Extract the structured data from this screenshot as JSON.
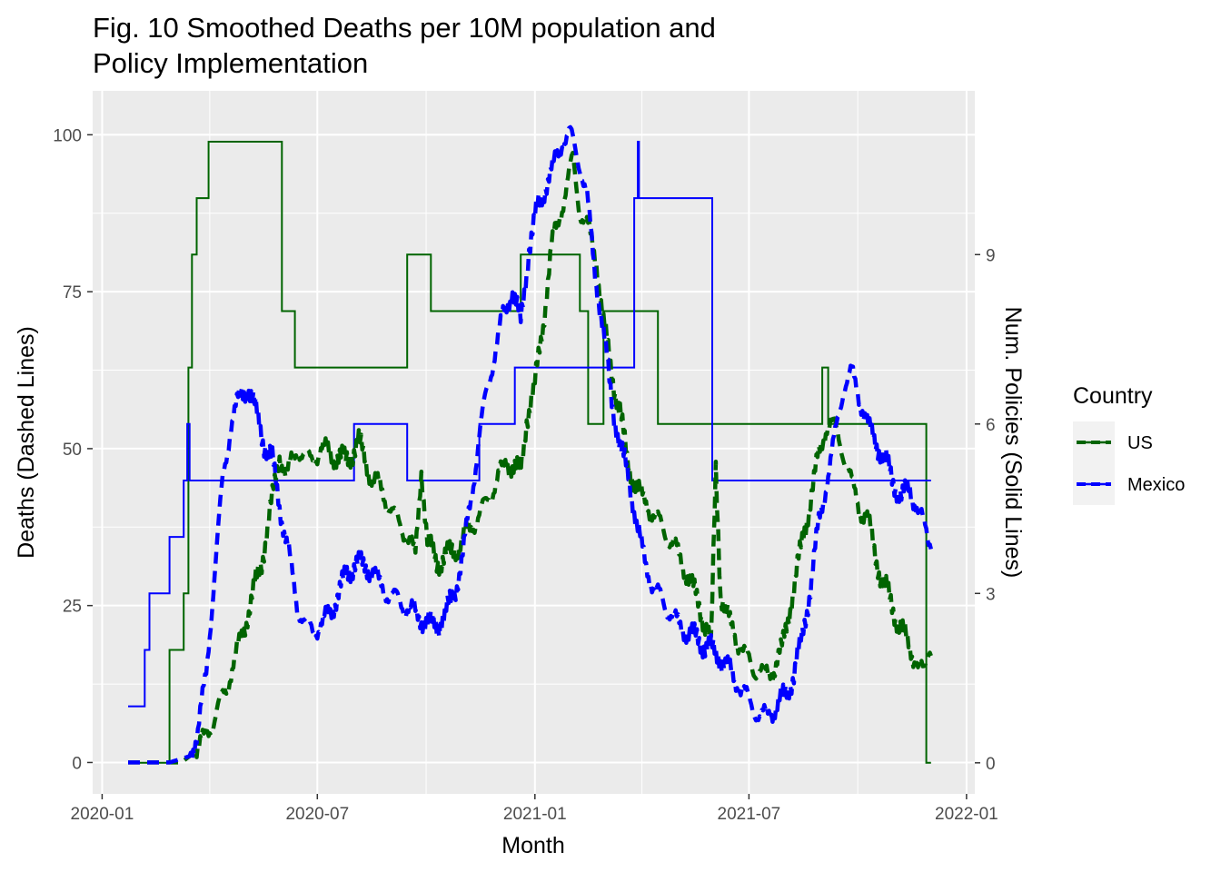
{
  "chart_data": {
    "type": "line",
    "title": [
      "Fig. 10 Smoothed Deaths per 10M population and",
      "Policy Implementation"
    ],
    "xlabel": "Month",
    "ylabel": "Deaths (Dashed Lines)",
    "y2label": "Num. Policies (Solid Lines)",
    "x_ticks": [
      "2020-01",
      "2020-07",
      "2021-01",
      "2021-07",
      "2022-01"
    ],
    "y_ticks": [
      "0",
      "25",
      "50",
      "75",
      "100"
    ],
    "y2_ticks": [
      "0",
      "3",
      "6",
      "9"
    ],
    "xlim": [
      "2019-12-24",
      "2022-01-08"
    ],
    "ylim": [
      -5,
      107
    ],
    "y2lim": [
      -0.55,
      11.9
    ],
    "grid": true,
    "legend": {
      "title": "Country",
      "position": "right",
      "entries": [
        {
          "label": "US",
          "color": "#006400"
        },
        {
          "label": "Mexico",
          "color": "#0000ff"
        }
      ]
    },
    "series": [
      {
        "name": "US",
        "color": "#006400",
        "deaths": [
          [
            "2020-01-23",
            0
          ],
          [
            "2020-02-20",
            0
          ],
          [
            "2020-03-08",
            0
          ],
          [
            "2020-03-15",
            1
          ],
          [
            "2020-03-25",
            3
          ],
          [
            "2020-04-05",
            7
          ],
          [
            "2020-04-15",
            12
          ],
          [
            "2020-04-25",
            18
          ],
          [
            "2020-05-05",
            25
          ],
          [
            "2020-05-15",
            32
          ],
          [
            "2020-05-22",
            40
          ],
          [
            "2020-05-27",
            45
          ],
          [
            "2020-05-30",
            49
          ],
          [
            "2020-06-05",
            46
          ],
          [
            "2020-06-15",
            50
          ],
          [
            "2020-06-25",
            48
          ],
          [
            "2020-07-05",
            50
          ],
          [
            "2020-07-15",
            49
          ],
          [
            "2020-07-25",
            48
          ],
          [
            "2020-08-05",
            51
          ],
          [
            "2020-08-15",
            46
          ],
          [
            "2020-08-25",
            43
          ],
          [
            "2020-09-05",
            39
          ],
          [
            "2020-09-15",
            36
          ],
          [
            "2020-09-22",
            33
          ],
          [
            "2020-09-27",
            47
          ],
          [
            "2020-10-02",
            35
          ],
          [
            "2020-10-10",
            32
          ],
          [
            "2020-10-20",
            33
          ],
          [
            "2020-10-30",
            35
          ],
          [
            "2020-11-10",
            38
          ],
          [
            "2020-11-20",
            41
          ],
          [
            "2020-11-30",
            45
          ],
          [
            "2020-12-08",
            48
          ],
          [
            "2020-12-15",
            47
          ],
          [
            "2020-12-20",
            46
          ],
          [
            "2020-12-25",
            55
          ],
          [
            "2021-01-01",
            60
          ],
          [
            "2021-01-08",
            70
          ],
          [
            "2021-01-15",
            82
          ],
          [
            "2021-01-22",
            87
          ],
          [
            "2021-01-28",
            92
          ],
          [
            "2021-02-02",
            96
          ],
          [
            "2021-02-08",
            88
          ],
          [
            "2021-02-15",
            85
          ],
          [
            "2021-02-22",
            80
          ],
          [
            "2021-02-28",
            70
          ],
          [
            "2021-03-07",
            62
          ],
          [
            "2021-03-14",
            56
          ],
          [
            "2021-03-20",
            48
          ],
          [
            "2021-03-26",
            45
          ],
          [
            "2021-04-02",
            42
          ],
          [
            "2021-04-10",
            40
          ],
          [
            "2021-04-20",
            37
          ],
          [
            "2021-04-30",
            34
          ],
          [
            "2021-05-10",
            30
          ],
          [
            "2021-05-20",
            25
          ],
          [
            "2021-05-27",
            21
          ],
          [
            "2021-05-30",
            18
          ],
          [
            "2021-06-03",
            47
          ],
          [
            "2021-06-07",
            27
          ],
          [
            "2021-06-15",
            22
          ],
          [
            "2021-06-25",
            18
          ],
          [
            "2021-07-05",
            15
          ],
          [
            "2021-07-15",
            14
          ],
          [
            "2021-07-22",
            15
          ],
          [
            "2021-07-29",
            18
          ],
          [
            "2021-08-05",
            25
          ],
          [
            "2021-08-12",
            32
          ],
          [
            "2021-08-20",
            40
          ],
          [
            "2021-08-28",
            48
          ],
          [
            "2021-09-05",
            54
          ],
          [
            "2021-09-10",
            54
          ],
          [
            "2021-09-18",
            50
          ],
          [
            "2021-09-25",
            45
          ],
          [
            "2021-10-02",
            41
          ],
          [
            "2021-10-10",
            38
          ],
          [
            "2021-10-20",
            30
          ],
          [
            "2021-10-28",
            26
          ],
          [
            "2021-11-05",
            22
          ],
          [
            "2021-11-15",
            18
          ],
          [
            "2021-11-22",
            15
          ],
          [
            "2021-11-26",
            14
          ],
          [
            "2021-11-30",
            18
          ],
          [
            "2021-12-02",
            17
          ]
        ],
        "policies": [
          [
            "2020-01-23",
            0
          ],
          [
            "2020-02-27",
            2
          ],
          [
            "2020-03-10",
            3
          ],
          [
            "2020-03-14",
            7
          ],
          [
            "2020-03-17",
            9
          ],
          [
            "2020-03-21",
            10
          ],
          [
            "2020-03-31",
            11
          ],
          [
            "2020-06-01",
            8
          ],
          [
            "2020-06-12",
            7
          ],
          [
            "2020-09-15",
            9
          ],
          [
            "2020-10-05",
            8
          ],
          [
            "2020-12-20",
            9
          ],
          [
            "2021-01-13",
            9
          ],
          [
            "2021-02-08",
            8
          ],
          [
            "2021-02-15",
            6
          ],
          [
            "2021-02-28",
            8
          ],
          [
            "2021-04-15",
            6
          ],
          [
            "2021-09-01",
            7
          ],
          [
            "2021-09-06",
            6
          ],
          [
            "2021-11-26",
            6
          ],
          [
            "2021-11-28",
            0
          ],
          [
            "2021-12-02",
            0
          ]
        ]
      },
      {
        "name": "Mexico",
        "color": "#0000ff",
        "deaths": [
          [
            "2020-01-23",
            0
          ],
          [
            "2020-02-27",
            0
          ],
          [
            "2020-03-15",
            1
          ],
          [
            "2020-03-22",
            5
          ],
          [
            "2020-03-29",
            14
          ],
          [
            "2020-04-05",
            30
          ],
          [
            "2020-04-12",
            45
          ],
          [
            "2020-04-19",
            54
          ],
          [
            "2020-04-26",
            58
          ],
          [
            "2020-05-03",
            60
          ],
          [
            "2020-05-10",
            56
          ],
          [
            "2020-05-17",
            51
          ],
          [
            "2020-05-24",
            48
          ],
          [
            "2020-05-31",
            40
          ],
          [
            "2020-06-07",
            33
          ],
          [
            "2020-06-14",
            25
          ],
          [
            "2020-06-21",
            22
          ],
          [
            "2020-06-28",
            21
          ],
          [
            "2020-07-05",
            22
          ],
          [
            "2020-07-12",
            24
          ],
          [
            "2020-07-19",
            27
          ],
          [
            "2020-07-26",
            30
          ],
          [
            "2020-08-02",
            32
          ],
          [
            "2020-08-09",
            31
          ],
          [
            "2020-08-16",
            31
          ],
          [
            "2020-08-23",
            28
          ],
          [
            "2020-08-30",
            27
          ],
          [
            "2020-09-06",
            26
          ],
          [
            "2020-09-13",
            25
          ],
          [
            "2020-09-20",
            24
          ],
          [
            "2020-09-27",
            23
          ],
          [
            "2020-10-04",
            22
          ],
          [
            "2020-10-11",
            22
          ],
          [
            "2020-10-18",
            24
          ],
          [
            "2020-10-25",
            27
          ],
          [
            "2020-11-01",
            33
          ],
          [
            "2020-11-08",
            42
          ],
          [
            "2020-11-15",
            52
          ],
          [
            "2020-11-22",
            60
          ],
          [
            "2020-11-29",
            66
          ],
          [
            "2020-12-06",
            72
          ],
          [
            "2020-12-13",
            75
          ],
          [
            "2020-12-20",
            70
          ],
          [
            "2020-12-27",
            82
          ],
          [
            "2021-01-03",
            88
          ],
          [
            "2021-01-10",
            92
          ],
          [
            "2021-01-17",
            95
          ],
          [
            "2021-01-24",
            99
          ],
          [
            "2021-01-31",
            100
          ],
          [
            "2021-02-07",
            96
          ],
          [
            "2021-02-14",
            90
          ],
          [
            "2021-02-21",
            78
          ],
          [
            "2021-02-28",
            68
          ],
          [
            "2021-03-07",
            58
          ],
          [
            "2021-03-14",
            50
          ],
          [
            "2021-03-21",
            46
          ],
          [
            "2021-03-28",
            38
          ],
          [
            "2021-04-04",
            32
          ],
          [
            "2021-04-11",
            28
          ],
          [
            "2021-04-18",
            26
          ],
          [
            "2021-04-25",
            24
          ],
          [
            "2021-05-02",
            22
          ],
          [
            "2021-05-09",
            21
          ],
          [
            "2021-05-16",
            20
          ],
          [
            "2021-05-23",
            19
          ],
          [
            "2021-05-30",
            18
          ],
          [
            "2021-06-06",
            17
          ],
          [
            "2021-06-13",
            15
          ],
          [
            "2021-06-20",
            13
          ],
          [
            "2021-06-27",
            11
          ],
          [
            "2021-07-04",
            9
          ],
          [
            "2021-07-11",
            7
          ],
          [
            "2021-07-18",
            8
          ],
          [
            "2021-07-25",
            9
          ],
          [
            "2021-08-01",
            11
          ],
          [
            "2021-08-08",
            14
          ],
          [
            "2021-08-15",
            20
          ],
          [
            "2021-08-22",
            28
          ],
          [
            "2021-08-29",
            38
          ],
          [
            "2021-09-05",
            45
          ],
          [
            "2021-09-12",
            52
          ],
          [
            "2021-09-19",
            60
          ],
          [
            "2021-09-26",
            62
          ],
          [
            "2021-10-03",
            58
          ],
          [
            "2021-10-10",
            53
          ],
          [
            "2021-10-17",
            51
          ],
          [
            "2021-10-24",
            48
          ],
          [
            "2021-10-31",
            45
          ],
          [
            "2021-11-07",
            42
          ],
          [
            "2021-11-14",
            44
          ],
          [
            "2021-11-21",
            40
          ],
          [
            "2021-11-28",
            37
          ],
          [
            "2021-12-02",
            34
          ]
        ],
        "policies": [
          [
            "2020-01-23",
            1
          ],
          [
            "2020-02-06",
            2
          ],
          [
            "2020-02-10",
            3
          ],
          [
            "2020-02-27",
            4
          ],
          [
            "2020-03-10",
            5
          ],
          [
            "2020-03-13",
            6
          ],
          [
            "2020-03-15",
            5
          ],
          [
            "2020-08-01",
            6
          ],
          [
            "2020-09-15",
            5
          ],
          [
            "2020-11-15",
            6
          ],
          [
            "2020-12-15",
            7
          ],
          [
            "2021-03-26",
            10
          ],
          [
            "2021-03-29",
            11
          ],
          [
            "2021-03-30",
            10
          ],
          [
            "2021-05-31",
            5
          ],
          [
            "2021-12-02",
            5
          ]
        ]
      }
    ]
  }
}
